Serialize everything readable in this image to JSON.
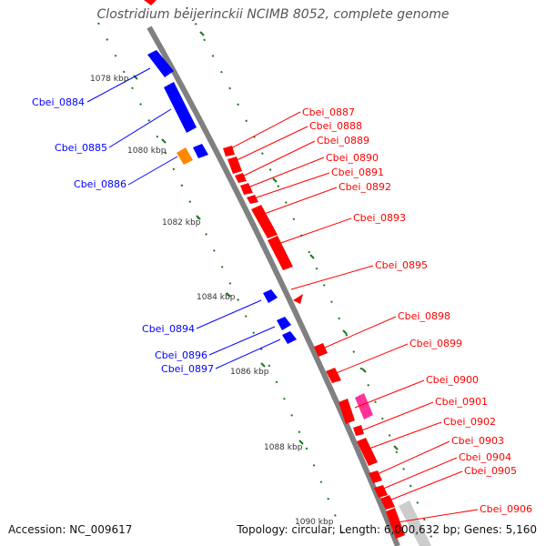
{
  "header": {
    "title": "Clostridium beijerinckii NCIMB 8052, complete genome"
  },
  "footer": {
    "accession": "Accession: NC_009617",
    "summary": "Topology: circular; Length: 6,000,632 bp; Genes: 5,160"
  },
  "colors": {
    "forward_gene": "#ff0000",
    "reverse_gene": "#0000ff",
    "other_gene": "#ff8800",
    "rna_gene": "#ff3399",
    "tick": "#1a7a1a",
    "backbone": "#808080"
  },
  "scale_labels": [
    "1078 kbp",
    "1080 kbp",
    "1082 kbp",
    "1084 kbp",
    "1086 kbp",
    "1088 kbp",
    "1090 kbp"
  ],
  "gene_labels_reverse": [
    "Cbei_0884",
    "Cbei_0885",
    "Cbei_0886",
    "Cbei_0894",
    "Cbei_0896",
    "Cbei_0897"
  ],
  "gene_labels_forward": [
    "Cbei_0887",
    "Cbei_0888",
    "Cbei_0889",
    "Cbei_0890",
    "Cbei_0891",
    "Cbei_0892",
    "Cbei_0893",
    "Cbei_0895",
    "Cbei_0898",
    "Cbei_0899",
    "Cbei_0900",
    "Cbei_0901",
    "Cbei_0902",
    "Cbei_0903",
    "Cbei_0904",
    "Cbei_0905",
    "Cbei_0906"
  ]
}
